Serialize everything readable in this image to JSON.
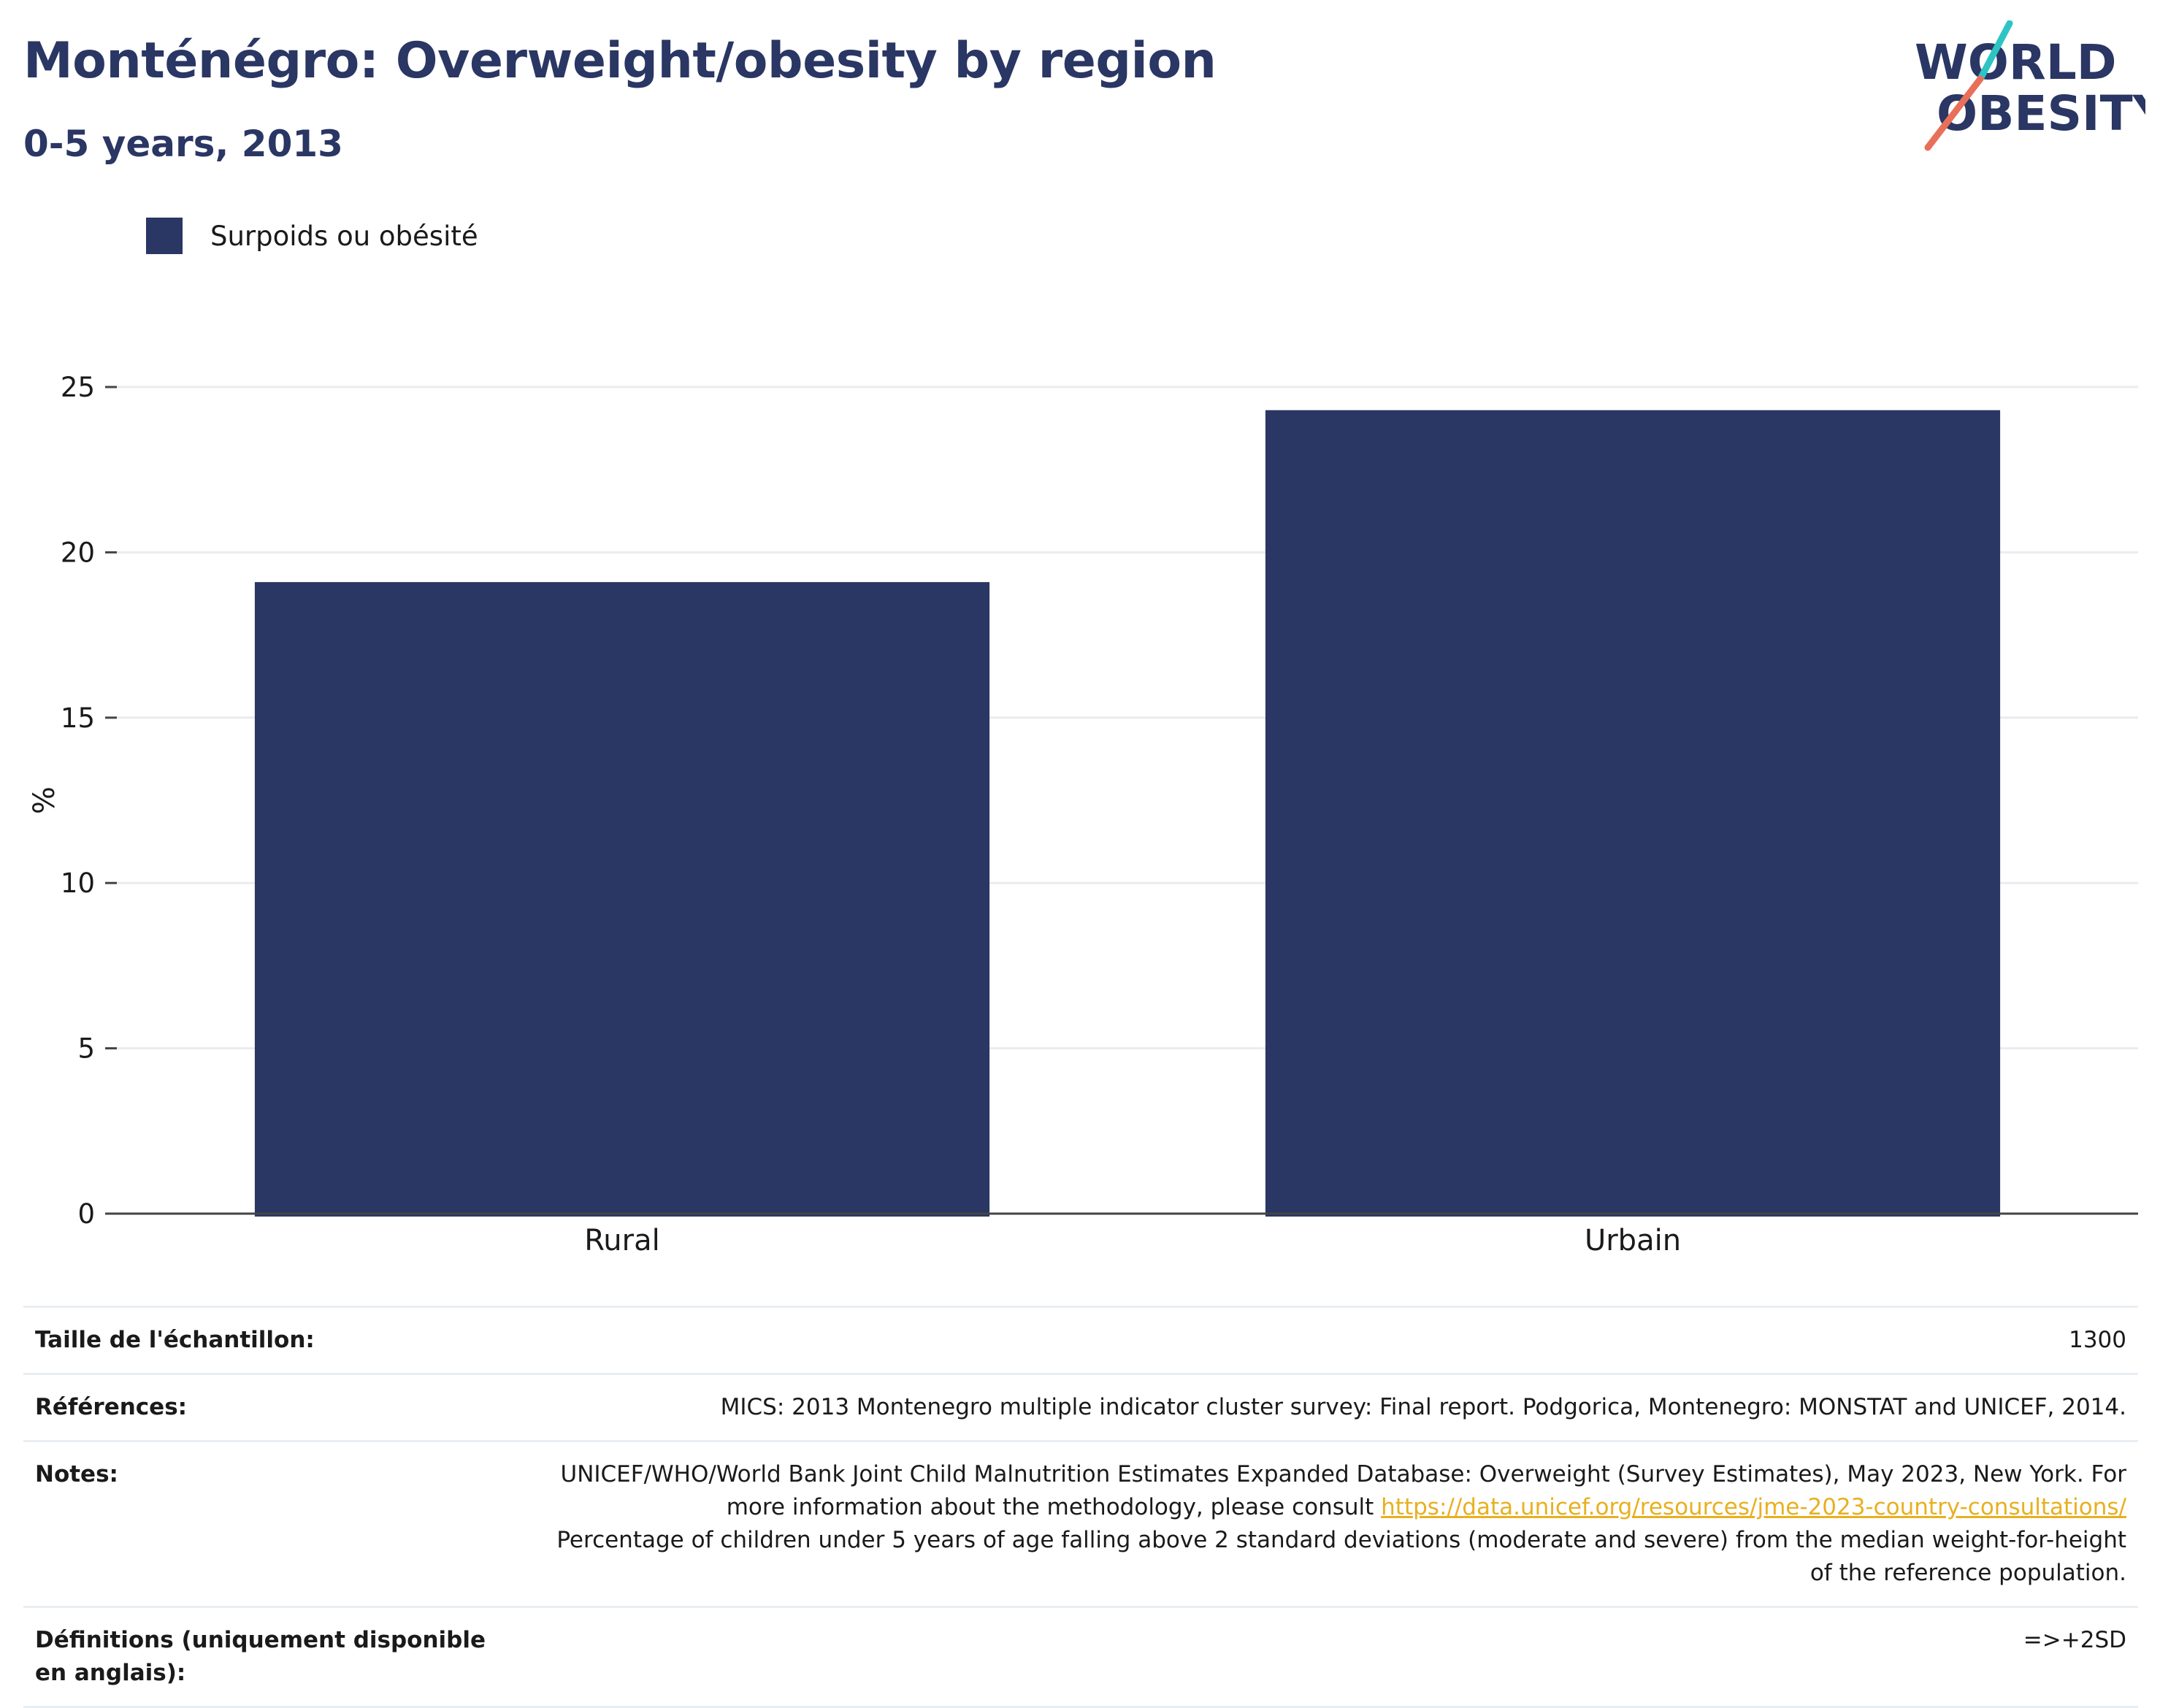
{
  "header": {
    "title": "Monténégro: Overweight/obesity by region",
    "subtitle": "0-5 years, 2013"
  },
  "logo": {
    "line1": "WORLD",
    "line2": "OBESITY"
  },
  "colors": {
    "bar": "#2a3663",
    "accent_teal": "#2ec4c4",
    "accent_coral": "#e8705a"
  },
  "chart_data": {
    "type": "bar",
    "categories": [
      "Rural",
      "Urbain"
    ],
    "series": [
      {
        "name": "Surpoids ou obésité",
        "values": [
          19.1,
          24.3
        ]
      }
    ],
    "ylabel": "%",
    "ylim": [
      0,
      25
    ],
    "yticks": [
      0,
      5,
      10,
      15,
      20,
      25
    ],
    "grid": true,
    "legend": "top-left"
  },
  "info": {
    "sample_label": "Taille de l'échantillon:",
    "sample_value": "1300",
    "references_label": "Références:",
    "references_value": "MICS: 2013 Montenegro multiple indicator cluster survey: Final report. Podgorica, Montenegro: MONSTAT and UNICEF, 2014.",
    "notes_label": "Notes:",
    "notes_text_1": "UNICEF/WHO/World Bank Joint Child Malnutrition Estimates Expanded Database: Overweight (Survey Estimates), May 2023, New York. For more information about the methodology, please consult ",
    "notes_link": "https://data.unicef.org/resources/jme-2023-country-consultations/",
    "notes_text_2": "Percentage of children under 5 years of age falling above 2 standard deviations (moderate and severe) from the median weight-for-height of the reference population.",
    "definitions_label": "Définitions (uniquement disponible en anglais):",
    "definitions_value": "=>+2SD"
  }
}
